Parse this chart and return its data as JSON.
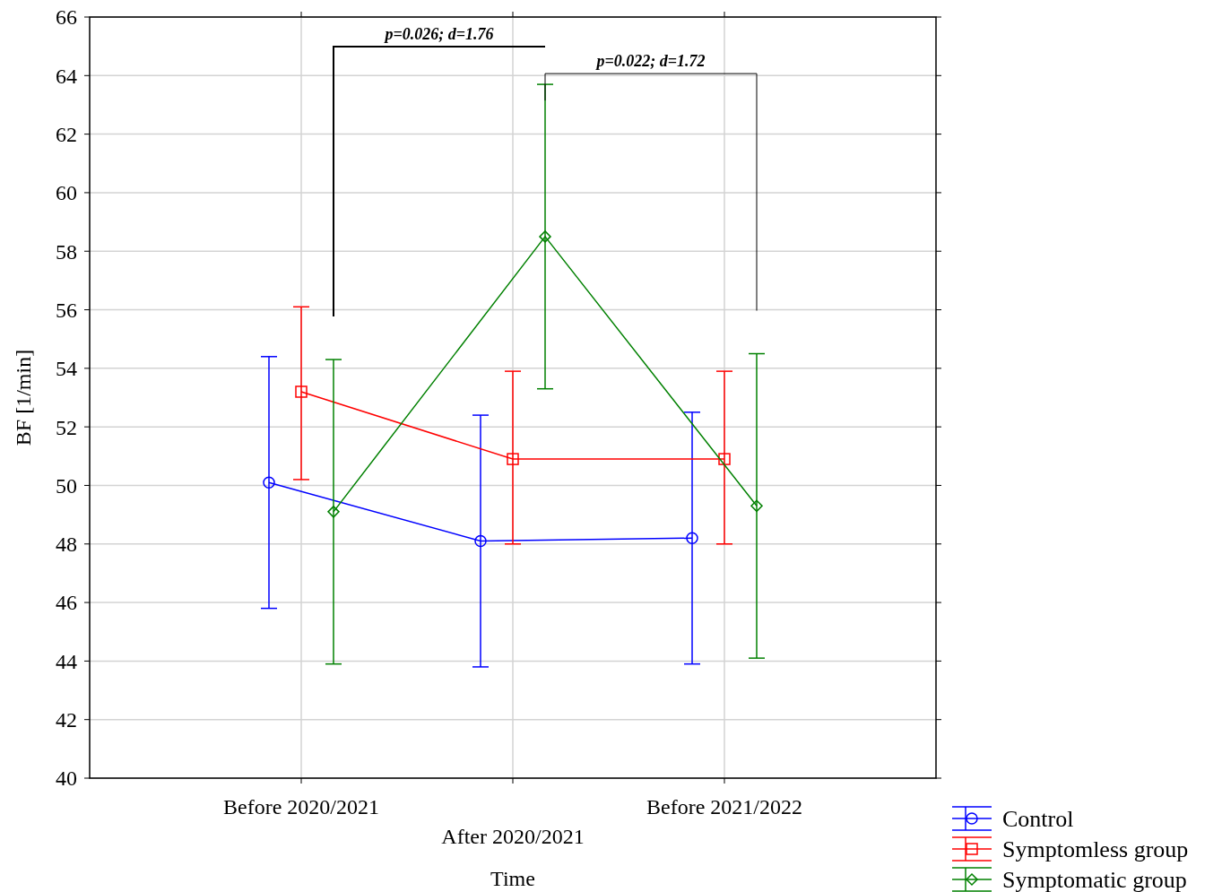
{
  "chart_data": {
    "type": "line",
    "xlabel": "Time",
    "ylabel": "BF [1/min]",
    "categories": [
      "Before 2020/2021",
      "After 2020/2021",
      "Before 2021/2022"
    ],
    "ylim": [
      40,
      66
    ],
    "yticks": [
      40,
      42,
      44,
      46,
      48,
      50,
      52,
      54,
      56,
      58,
      60,
      62,
      64,
      66
    ],
    "grid": true,
    "legend": "bottom right",
    "series": [
      {
        "name": "Control",
        "color": "#0000ff",
        "marker": "circle",
        "values": [
          50.1,
          48.1,
          48.2
        ],
        "errors": [
          [
            45.8,
            54.4
          ],
          [
            43.8,
            52.4
          ],
          [
            43.9,
            52.5
          ]
        ]
      },
      {
        "name": "Symptomless group",
        "color": "#ff0000",
        "marker": "square",
        "values": [
          53.2,
          50.9,
          50.9
        ],
        "errors": [
          [
            50.2,
            56.1
          ],
          [
            48.0,
            53.9
          ],
          [
            48.0,
            53.9
          ]
        ]
      },
      {
        "name": "Symptomatic group",
        "color": "#008000",
        "marker": "diamond",
        "values": [
          49.1,
          58.5,
          49.3
        ],
        "errors": [
          [
            43.9,
            54.3
          ],
          [
            53.3,
            63.7
          ],
          [
            44.1,
            54.5
          ]
        ]
      }
    ],
    "annotations": [
      "p=0.026; d=1.76",
      "p=0.022; d=1.72"
    ]
  }
}
